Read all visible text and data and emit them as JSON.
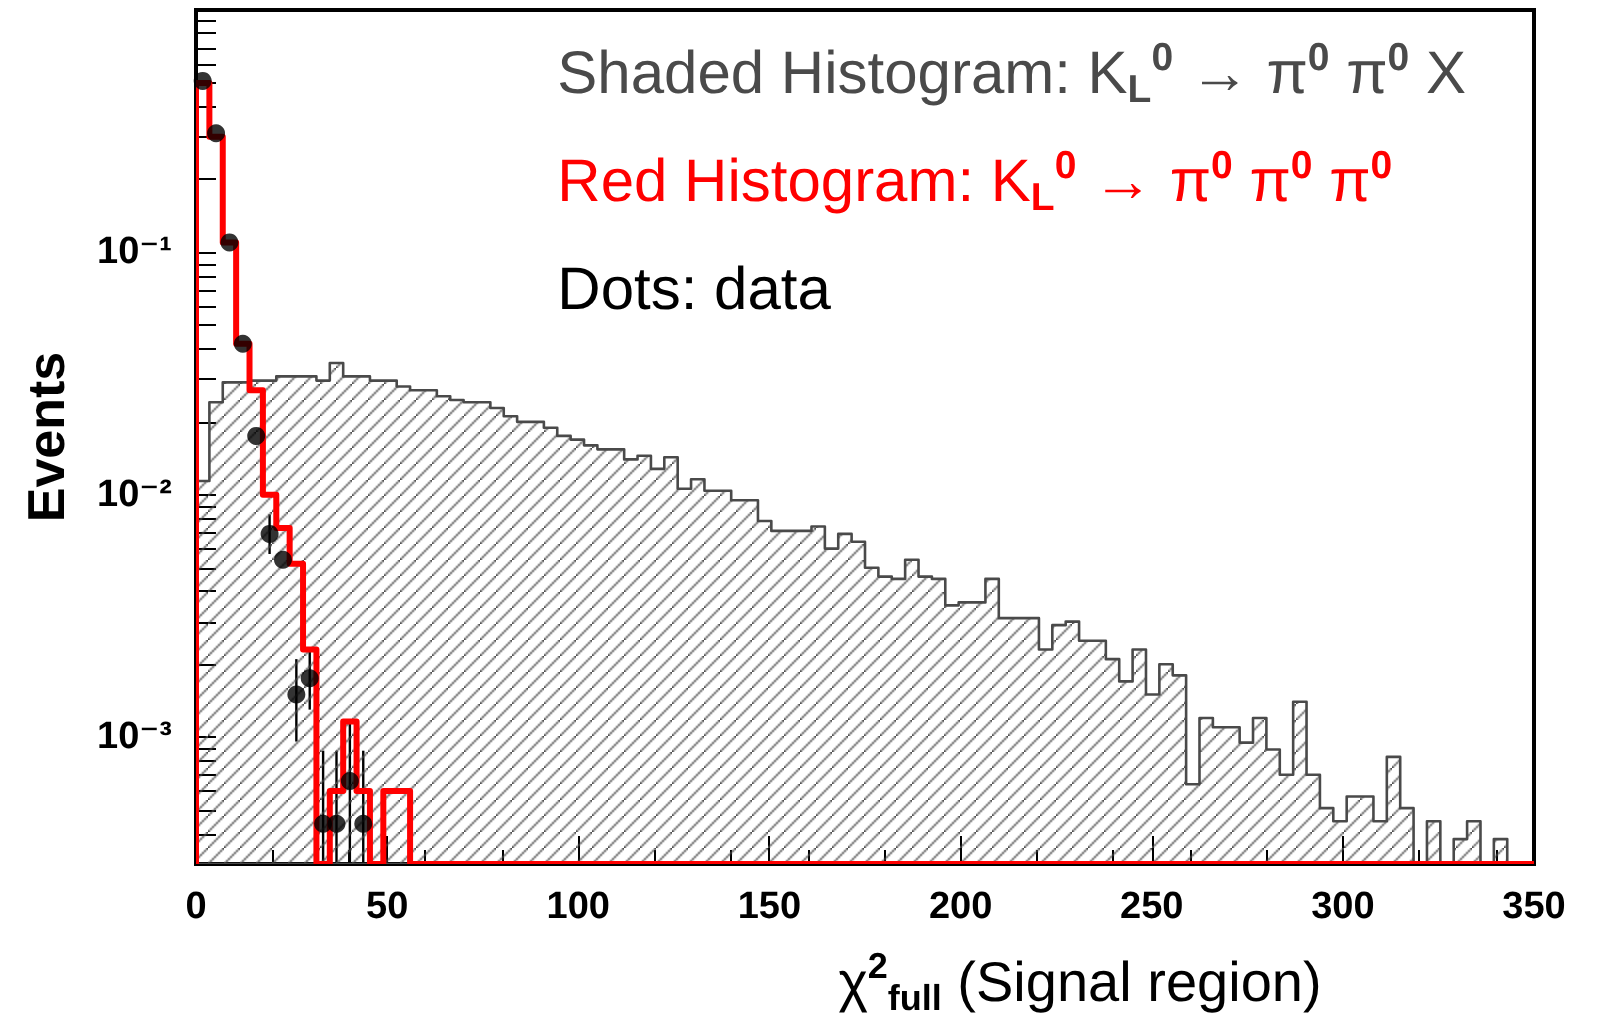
{
  "chart_data": {
    "type": "histogram",
    "xlabel": "χ$^{2}$$_{full}$ (Signal region)",
    "ylabel": "Events",
    "log": "y",
    "legend": "top right",
    "marker": "circle",
    "xlim": [
      0,
      350
    ],
    "xticks": [
      0,
      50,
      100,
      150,
      200,
      250,
      300,
      350
    ],
    "ylim": [
      0.0003,
      1
    ],
    "yticks": [
      {
        "value": 0.0004,
        "label": null
      },
      {
        "value": 0.0005,
        "label": null
      },
      {
        "value": 0.0006,
        "label": null
      },
      {
        "value": 0.0007,
        "label": null
      },
      {
        "value": 0.0008,
        "label": null
      },
      {
        "value": 0.0009,
        "label": null
      },
      {
        "value": 0.001,
        "label": "10⁻³"
      },
      {
        "value": 0.002,
        "label": null
      },
      {
        "value": 0.003,
        "label": null
      },
      {
        "value": 0.004,
        "label": null
      },
      {
        "value": 0.005,
        "label": null
      },
      {
        "value": 0.006,
        "label": null
      },
      {
        "value": 0.007,
        "label": null
      },
      {
        "value": 0.008,
        "label": null
      },
      {
        "value": 0.009,
        "label": null
      },
      {
        "value": 0.01,
        "label": "10⁻²"
      },
      {
        "value": 0.02,
        "label": null
      },
      {
        "value": 0.03,
        "label": null
      },
      {
        "value": 0.04,
        "label": null
      },
      {
        "value": 0.05,
        "label": null
      },
      {
        "value": 0.06,
        "label": null
      },
      {
        "value": 0.07,
        "label": null
      },
      {
        "value": 0.08,
        "label": null
      },
      {
        "value": 0.09,
        "label": null
      },
      {
        "value": 0.1,
        "label": "10⁻¹"
      },
      {
        "value": 0.2,
        "label": null
      },
      {
        "value": 0.3,
        "label": null
      },
      {
        "value": 0.4,
        "label": null
      },
      {
        "value": 0.5,
        "label": null
      },
      {
        "value": 0.6,
        "label": null
      },
      {
        "value": 0.7,
        "label": null
      },
      {
        "value": 0.8,
        "label": null
      },
      {
        "value": 0.9,
        "label": null
      }
    ],
    "bins": [
      0,
      3.5,
      7,
      10.5,
      14,
      17.5,
      21,
      24.5,
      28,
      31.5,
      35,
      38.5,
      42,
      45.5,
      49,
      52.5,
      56,
      59.5,
      63,
      66.5,
      70,
      73.5,
      77,
      80.5,
      84,
      87.5,
      91,
      94.5,
      98,
      101.5,
      105,
      108.5,
      112,
      115.5,
      119,
      122.5,
      126,
      129.5,
      133,
      136.5,
      140,
      143.5,
      147,
      150.5,
      154,
      157.5,
      161,
      164.5,
      168,
      171.5,
      175,
      178.5,
      182,
      185.5,
      189,
      192.5,
      196,
      199.5,
      203,
      206.5,
      210,
      213.5,
      217,
      220.5,
      224,
      227.5,
      231,
      234.5,
      238,
      241.5,
      245,
      248.5,
      252,
      255.5,
      259,
      262.5,
      266,
      269.5,
      273,
      276.5,
      280,
      283.5,
      287,
      290.5,
      294,
      297.5,
      301,
      304.5,
      308,
      311.5,
      315,
      318.5,
      322,
      325.5,
      329,
      332.5,
      336,
      339.5,
      343,
      346.5,
      350
    ],
    "series": [
      {
        "name": "Shaded Histogram: K$_{L}$$^{0}$ → π$^{0}$ π$^{0}$ X",
        "color": "#4a4a4a",
        "values": [
          0.0114,
          0.0241,
          0.0291,
          0.0291,
          0.0296,
          0.0296,
          0.0308,
          0.0308,
          0.0308,
          0.0296,
          0.035,
          0.0308,
          0.0308,
          0.0296,
          0.0296,
          0.028,
          0.027,
          0.027,
          0.0255,
          0.0246,
          0.0241,
          0.0241,
          0.0228,
          0.0211,
          0.02,
          0.02,
          0.0189,
          0.0175,
          0.0169,
          0.016,
          0.0154,
          0.0154,
          0.014,
          0.0145,
          0.0128,
          0.0143,
          0.0106,
          0.0116,
          0.0104,
          0.0104,
          0.0095,
          0.0095,
          0.0078,
          0.0071,
          0.0071,
          0.0071,
          0.0074,
          0.006,
          0.0069,
          0.0064,
          0.005,
          0.0046,
          0.0045,
          0.0054,
          0.0046,
          0.0045,
          0.0035,
          0.0036,
          0.0036,
          0.0045,
          0.0031,
          0.0031,
          0.0031,
          0.0023,
          0.0029,
          0.003,
          0.0025,
          0.0025,
          0.0021,
          0.0017,
          0.0023,
          0.0015,
          0.002,
          0.0018,
          0.00064,
          0.0012,
          0.0011,
          0.0011,
          0.00095,
          0.0012,
          0.00089,
          0.0007,
          0.0014,
          0.0007,
          0.00051,
          0.00045,
          0.00057,
          0.00057,
          0.00045,
          0.00083,
          0.00051,
          null,
          0.00045,
          null,
          0.00038,
          0.00045,
          null,
          0.00038,
          null,
          null
        ]
      },
      {
        "type": "histogram",
        "name": "Red Histogram: K$_{L}$$^{0}$ → π$^{0}$ π$^{0}$ π$^{0}$",
        "color": "#ff0000",
        "values": [
          0.5,
          0.3,
          0.11,
          0.042,
          0.027,
          0.01,
          0.0073,
          0.0052,
          0.0023,
          null,
          0.0006,
          0.00116,
          0.0006,
          null,
          0.0006,
          0.0006,
          null,
          null,
          null,
          null,
          null,
          null,
          null,
          null,
          null,
          null,
          null,
          null,
          null,
          null,
          null,
          null,
          null,
          null,
          null,
          null,
          null,
          null,
          null,
          null,
          null,
          null,
          null,
          null,
          null,
          null,
          null,
          null,
          null,
          null,
          null,
          null,
          null,
          null,
          null,
          null,
          null,
          null,
          null,
          null,
          null,
          null,
          null,
          null,
          null,
          null,
          null,
          null,
          null,
          null,
          null,
          null,
          null,
          null,
          null,
          null,
          null,
          null,
          null,
          null,
          null,
          null,
          null,
          null,
          null,
          null,
          null,
          null,
          null,
          null,
          null,
          null,
          null,
          null,
          null,
          null,
          null,
          null,
          null,
          null
        ]
      },
      {
        "type": "scatter",
        "name": "Dots: data",
        "color": "#000000",
        "x": [
          1.75,
          5.25,
          8.75,
          12.25,
          15.75,
          19.25,
          22.75,
          26.25,
          29.75,
          33.25,
          36.75,
          40.25,
          43.75
        ],
        "values": [
          0.51,
          0.31,
          0.11,
          0.042,
          0.0175,
          0.0069,
          0.0054,
          0.0015,
          0.00175,
          0.00044,
          0.00044,
          0.00066,
          0.00044
        ],
        "errors": [
          null,
          null,
          null,
          null,
          null,
          [
            0.0057,
            0.0083
          ],
          null,
          [
            0.00096,
            0.0021
          ],
          [
            0.0013,
            0.0023
          ],
          [
            0.0003,
            0.00088
          ],
          [
            0.0003,
            0.00088
          ],
          [
            0.0003,
            0.00118
          ],
          [
            0.0003,
            0.00088
          ]
        ]
      }
    ]
  }
}
